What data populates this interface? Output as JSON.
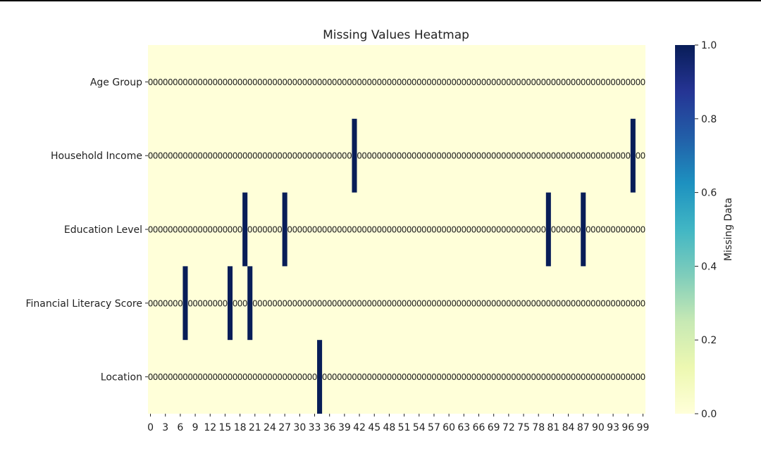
{
  "chart_data": {
    "type": "heatmap",
    "title": "Missing Values Heatmap",
    "xlabel": "",
    "ylabel": "",
    "rows": [
      "Age Group",
      "Household Income",
      "Education Level",
      "Financial Literacy Score",
      "Location"
    ],
    "n_columns": 100,
    "x_tick_labels": [
      "0",
      "3",
      "6",
      "9",
      "12",
      "15",
      "18",
      "21",
      "24",
      "27",
      "30",
      "33",
      "36",
      "39",
      "42",
      "45",
      "48",
      "51",
      "54",
      "57",
      "60",
      "63",
      "66",
      "69",
      "72",
      "75",
      "78",
      "81",
      "84",
      "87",
      "90",
      "93",
      "96",
      "99"
    ],
    "missing": {
      "Age Group": [],
      "Household Income": [
        41,
        97
      ],
      "Education Level": [
        19,
        27,
        80,
        87
      ],
      "Financial Literacy Score": [
        7,
        16,
        20
      ],
      "Location": [
        34
      ]
    },
    "annotation_value": "0",
    "colorbar": {
      "label": "Missing Data",
      "ticks": [
        "0.0",
        "0.2",
        "0.4",
        "0.6",
        "0.8",
        "1.0"
      ],
      "range": [
        0,
        1
      ],
      "colormap": "YlGnBu",
      "low_color": "#ffffd9",
      "high_color": "#081d58"
    }
  }
}
